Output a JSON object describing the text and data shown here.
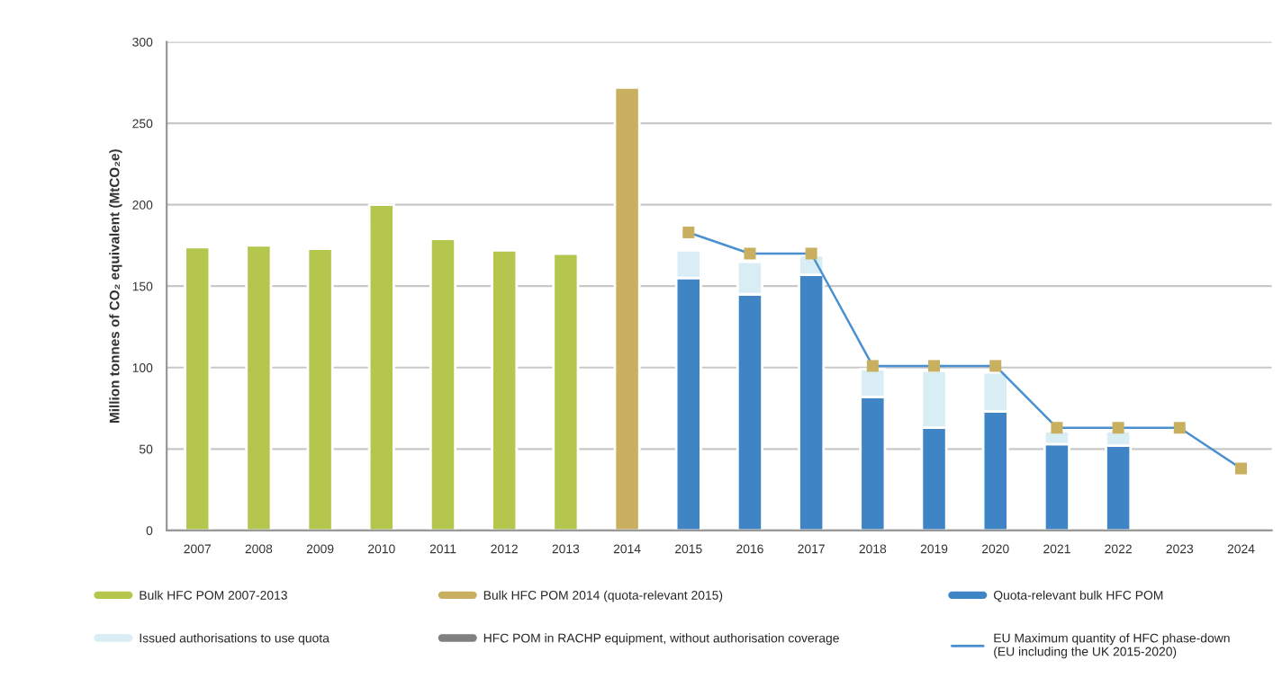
{
  "chart_data": {
    "type": "bar",
    "stacked": true,
    "ylabel": "Million tonnes of CO₂ equivalent (MtCO₂e)",
    "categories": [
      "2007",
      "2008",
      "2009",
      "2010",
      "2011",
      "2012",
      "2013",
      "2014",
      "2015",
      "2016",
      "2017",
      "2018",
      "2019",
      "2020",
      "2021",
      "2022",
      "2023",
      "2024"
    ],
    "series": [
      {
        "name": "Bulk HFC POM 2007-2013",
        "color": "#b5c64f",
        "values": [
          174,
          175,
          173,
          200,
          179,
          172,
          170,
          null,
          null,
          null,
          null,
          null,
          null,
          null,
          null,
          null,
          null,
          null
        ]
      },
      {
        "name": "Bulk HFC POM 2014 (quota-relevant 2015)",
        "color": "#c8b060",
        "values": [
          null,
          null,
          null,
          null,
          null,
          null,
          null,
          272,
          null,
          null,
          null,
          null,
          null,
          null,
          null,
          null,
          null,
          null
        ]
      },
      {
        "name": "Quota-relevant bulk HFC POM",
        "color": "#3f85c6",
        "values": [
          null,
          null,
          null,
          null,
          null,
          null,
          null,
          null,
          155,
          145,
          157,
          82,
          63,
          73,
          53,
          52,
          null,
          null
        ]
      },
      {
        "name": "Issued authorisations to use quota",
        "color": "#d8eef4",
        "values": [
          null,
          null,
          null,
          null,
          null,
          null,
          null,
          null,
          17,
          20,
          12,
          17,
          35,
          24,
          8,
          9,
          null,
          null
        ]
      },
      {
        "name": "HFC POM in RACHP equipment, without authorisation coverage",
        "color": "#808080",
        "values": [
          null,
          null,
          null,
          null,
          null,
          null,
          null,
          null,
          null,
          null,
          null,
          null,
          null,
          null,
          null,
          null,
          null,
          null
        ]
      },
      {
        "type": "line",
        "name": "EU Maximum quantity of HFC phase-down\n(EU including the UK 2015-2020)",
        "color": "#4a90d0",
        "values": [
          null,
          null,
          null,
          null,
          null,
          null,
          null,
          null,
          183,
          170,
          170,
          101,
          101,
          101,
          63,
          63,
          63,
          38
        ]
      },
      {
        "type": "scatter",
        "marker": "square",
        "color": "#c8b060",
        "values": [
          null,
          null,
          null,
          null,
          null,
          null,
          null,
          null,
          183,
          170,
          170,
          101,
          101,
          101,
          63,
          63,
          63,
          38
        ]
      }
    ],
    "ylim": [
      0,
      300
    ],
    "yticks": [
      0,
      50,
      100,
      150,
      200,
      250,
      300
    ],
    "grid": "y",
    "legend": "bottom"
  }
}
